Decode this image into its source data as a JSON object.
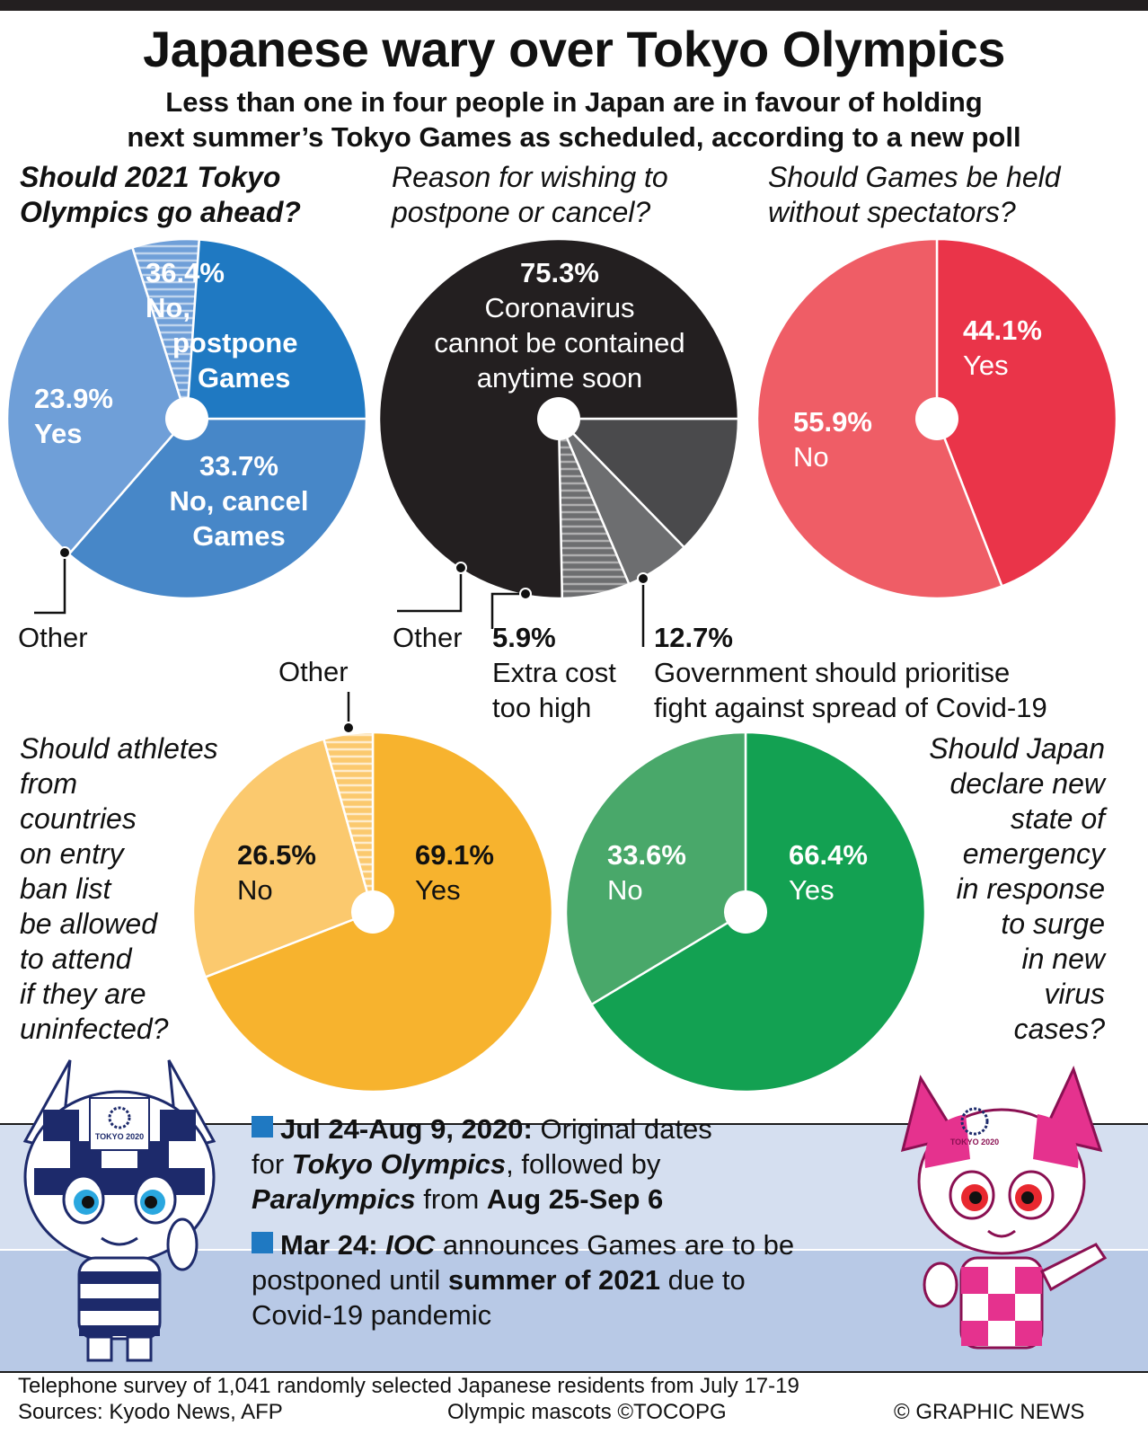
{
  "title": "Japanese wary over Tokyo Olympics",
  "subtitle_line1": "Less than one in four people in Japan are in favour of holding",
  "subtitle_line2": "next summer’s Tokyo Games as scheduled, according to a new poll",
  "colors": {
    "blue_dark": "#1f79c2",
    "blue_mid": "#4787c8",
    "blue_light": "#6f9fd8",
    "gray_dark": "#231f20",
    "gray_mid": "#4a4a4c",
    "gray_light": "#6d6e70",
    "red_light": "#ef5d66",
    "red_dark": "#ea3449",
    "yellow_light": "#fbc96e",
    "yellow_dark": "#f7b32e",
    "green_light": "#49a86a",
    "green_dark": "#13a152"
  },
  "chart_data": [
    {
      "type": "pie",
      "question_line1": "Should 2021 Tokyo",
      "question_line2": "Olympics go ahead?",
      "slices": [
        {
          "pct": "36.4%",
          "text1": "No,",
          "text2": "postpone",
          "text3": "Games",
          "value": 36.4,
          "color": "#4787c8"
        },
        {
          "pct": "33.7%",
          "text1": "No, cancel",
          "text2": "Games",
          "value": 33.7,
          "color": "#6f9fd8"
        },
        {
          "text1": "Other",
          "value": 6.0,
          "color": "#6f9fd8",
          "hatched": true
        },
        {
          "pct": "23.9%",
          "text1": "Yes",
          "value": 23.9,
          "color": "#1f79c2"
        }
      ]
    },
    {
      "type": "pie",
      "question_line1": "Reason for wishing to",
      "question_line2": "postpone or cancel?",
      "slices": [
        {
          "pct": "12.7%",
          "text1": "Government should prioritise",
          "text2": "fight against spread of Covid-19",
          "value": 12.7,
          "color": "#4a4a4c"
        },
        {
          "pct": "5.9%",
          "text1": "Extra cost",
          "text2": "too high",
          "value": 5.9,
          "color": "#6d6e70"
        },
        {
          "text1": "Other",
          "value": 6.1,
          "color": "#6d6e70",
          "hatched": true
        },
        {
          "pct": "75.3%",
          "text1": "Coronavirus",
          "text2": "cannot be contained",
          "text3": "anytime soon",
          "value": 75.3,
          "color": "#231f20"
        }
      ]
    },
    {
      "type": "pie",
      "question_line1": "Should Games be held",
      "question_line2": "without spectators?",
      "slices": [
        {
          "pct": "44.1%",
          "text1": "Yes",
          "value": 44.1,
          "color": "#ea3449"
        },
        {
          "pct": "55.9%",
          "text1": "No",
          "value": 55.9,
          "color": "#ef5d66"
        }
      ]
    },
    {
      "type": "pie",
      "question_lines": [
        "Should athletes",
        "from",
        "countries",
        "on entry",
        "ban list",
        "be allowed",
        "to attend",
        "if they are",
        "uninfected?"
      ],
      "slices": [
        {
          "pct": "69.1%",
          "text1": "Yes",
          "value": 69.1,
          "color": "#f7b32e"
        },
        {
          "pct": "26.5%",
          "text1": "No",
          "value": 26.5,
          "color": "#fbc96e"
        },
        {
          "text1": "Other",
          "value": 4.4,
          "color": "#fbc96e",
          "hatched": true
        }
      ]
    },
    {
      "type": "pie",
      "question_lines": [
        "Should Japan",
        "declare new",
        "state of",
        "emergency",
        "in response",
        "to surge",
        "in new",
        "virus",
        "cases?"
      ],
      "slices": [
        {
          "pct": "66.4%",
          "text1": "Yes",
          "value": 66.4,
          "color": "#13a152"
        },
        {
          "pct": "33.6%",
          "text1": "No",
          "value": 33.6,
          "color": "#49a86a"
        }
      ]
    }
  ],
  "timeline": {
    "item1": {
      "date": "Jul 24-Aug 9, 2020:",
      "t1": " Original dates",
      "t2": "for ",
      "e1": "Tokyo Olympics",
      "t3": ", followed by",
      "e2": "Paralympics",
      "t4": " from ",
      "d2": "Aug 25-Sep 6"
    },
    "item2": {
      "date": "Mar 24:",
      "e1": "IOC",
      "t1": " announces Games are to be",
      "t2": "postponed until ",
      "b1": "summer of 2021",
      "t3": " due to",
      "t4": "Covid-19 pandemic"
    }
  },
  "mascot_left": {
    "logo": "TOKYO 2020"
  },
  "mascot_right": {
    "logo": "TOKYO 2020"
  },
  "footer": {
    "survey": "Telephone survey of 1,041 randomly selected Japanese residents from July 17-19",
    "sources": "Sources: Kyodo News, AFP",
    "mascots": "Olympic mascots ©TOCOPG",
    "credit": "© GRAPHIC NEWS"
  }
}
